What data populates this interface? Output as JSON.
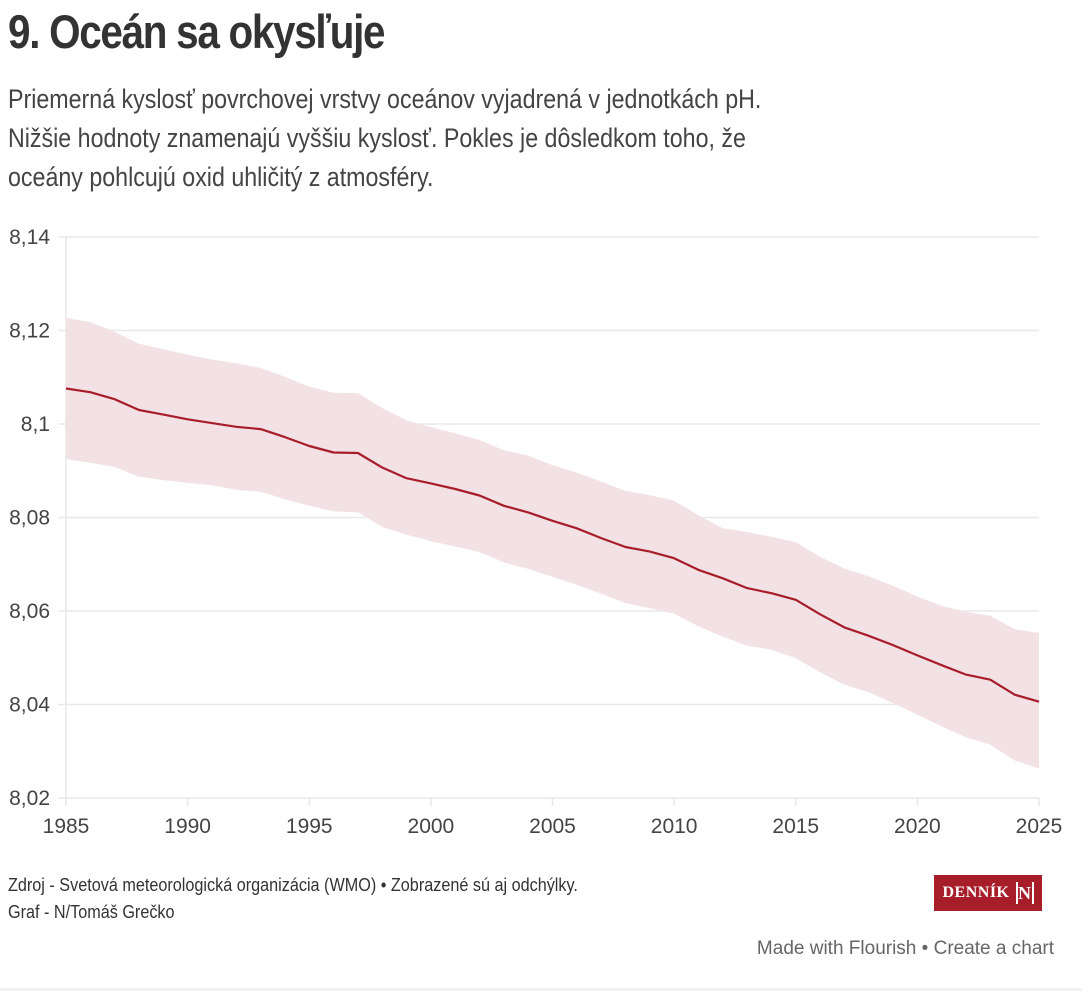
{
  "header": {
    "title": "9. Oceán sa okysľuje",
    "subtitle_lines": [
      "Priemerná kyslosť povrchovej vrstvy oceánov vyjadrená v jednotkách pH.",
      "Nižšie hodnoty znamenajú vyššiu kyslosť. Pokles je dôsledkom toho, že",
      "oceány pohlcujú oxid uhličitý z atmosféry."
    ]
  },
  "chart_data": {
    "type": "line",
    "title": "9. Oceán sa okysľuje",
    "xlabel": "",
    "ylabel": "",
    "xlim": [
      1985,
      2025
    ],
    "ylim": [
      8.02,
      8.14
    ],
    "grid": true,
    "x_ticks": [
      1985,
      1990,
      1995,
      2000,
      2005,
      2010,
      2015,
      2020,
      2025
    ],
    "x_tick_labels": [
      "1985",
      "1990",
      "1995",
      "2000",
      "2005",
      "2010",
      "2015",
      "2020",
      "2025"
    ],
    "y_ticks": [
      8.02,
      8.04,
      8.06,
      8.08,
      8.1,
      8.12,
      8.14
    ],
    "y_tick_labels": [
      "8,02",
      "8,04",
      "8,06",
      "8,08",
      "8,1",
      "8,12",
      "8,14"
    ],
    "x": [
      1985,
      1986,
      1987,
      1988,
      1989,
      1990,
      1991,
      1992,
      1993,
      1994,
      1995,
      1996,
      1997,
      1998,
      1999,
      2000,
      2001,
      2002,
      2003,
      2004,
      2005,
      2006,
      2007,
      2008,
      2009,
      2010,
      2011,
      2012,
      2013,
      2014,
      2015,
      2016,
      2017,
      2018,
      2019,
      2020,
      2021,
      2022,
      2023,
      2024,
      2025
    ],
    "series": [
      {
        "name": "pH",
        "color": "#a71e2a",
        "values": [
          8.1076,
          8.1068,
          8.1053,
          8.103,
          8.102,
          8.101,
          8.1002,
          8.0994,
          8.0989,
          8.0972,
          8.0953,
          8.0939,
          8.0938,
          8.0907,
          8.0884,
          8.0873,
          8.0861,
          8.0847,
          8.0825,
          8.0811,
          8.0793,
          8.0777,
          8.0756,
          8.0737,
          8.0727,
          8.0713,
          8.0688,
          8.067,
          8.0649,
          8.0638,
          8.0624,
          8.0593,
          8.0565,
          8.0547,
          8.0527,
          8.0505,
          8.0484,
          8.0464,
          8.0453,
          8.0421,
          8.0406
        ]
      },
      {
        "name": "upper deviation",
        "color": "#f3e2e5",
        "values": [
          8.1227,
          8.1218,
          8.1197,
          8.1172,
          8.116,
          8.1148,
          8.1138,
          8.113,
          8.112,
          8.1101,
          8.108,
          8.1067,
          8.1066,
          8.1034,
          8.1008,
          8.0993,
          8.098,
          8.0966,
          8.0944,
          8.0932,
          8.0912,
          8.0896,
          8.0877,
          8.0857,
          8.0848,
          8.0836,
          8.0805,
          8.0777,
          8.0769,
          8.0759,
          8.0747,
          8.0716,
          8.0691,
          8.0674,
          8.0654,
          8.0631,
          8.0611,
          8.0598,
          8.059,
          8.0561,
          8.0553
        ]
      },
      {
        "name": "lower deviation",
        "color": "#f3e2e5",
        "values": [
          8.0925,
          8.0917,
          8.0908,
          8.0887,
          8.088,
          8.0874,
          8.0869,
          8.0859,
          8.0855,
          8.0839,
          8.0825,
          8.0813,
          8.0811,
          8.078,
          8.0763,
          8.0749,
          8.0738,
          8.0726,
          8.0704,
          8.069,
          8.0673,
          8.0656,
          8.0637,
          8.0617,
          8.0606,
          8.0594,
          8.0567,
          8.0545,
          8.0526,
          8.0517,
          8.0499,
          8.0469,
          8.0442,
          8.0426,
          8.0403,
          8.0378,
          8.0353,
          8.033,
          8.0314,
          8.028,
          8.0263
        ]
      }
    ],
    "legend": "none"
  },
  "colors": {
    "line": "#a71e2a",
    "band": "#f3e2e5",
    "grid": "#e8e8e8",
    "brand": "#a71e2a"
  },
  "footer": {
    "source": "Zdroj - Svetová meteorologická organizácia (WMO) • Zobrazené sú aj odchýlky.",
    "credit": "Graf - N/Tomáš Grečko",
    "logo_text": "DENNÍK",
    "logo_mark": "N",
    "made_with": "Made with Flourish",
    "separator": " • ",
    "create_chart": "Create a chart"
  }
}
